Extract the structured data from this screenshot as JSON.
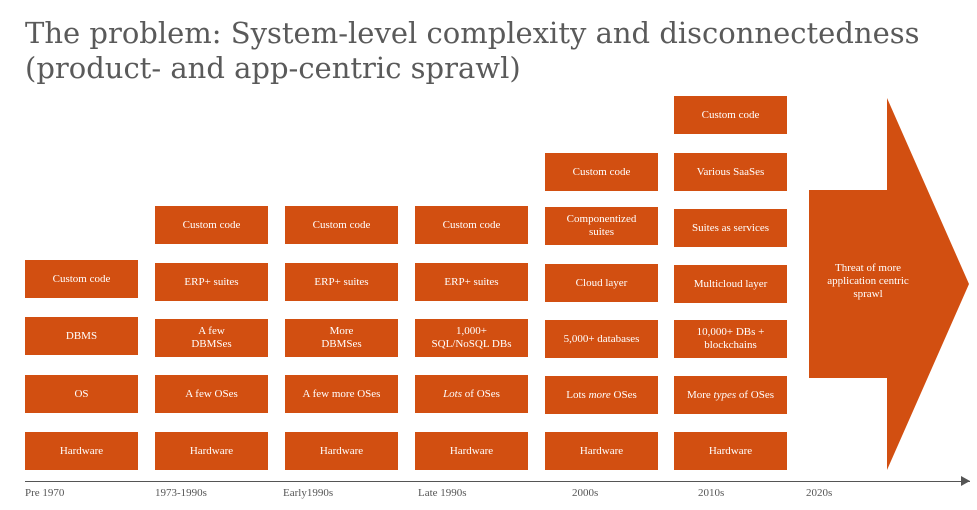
{
  "title": {
    "line1": "The problem: System-level complexity and disconnectedness",
    "line2": "(product- and app-centric sprawl)"
  },
  "columns": [
    {
      "label": "Pre 1970",
      "boxes": [
        "Custom code",
        "DBMS",
        "OS",
        "Hardware"
      ]
    },
    {
      "label": "1973-1990s",
      "boxes": [
        "Custom code",
        "ERP+ suites",
        "A few\nDBMSes",
        "A few OSes",
        "Hardware"
      ]
    },
    {
      "label": "Early1990s",
      "boxes": [
        "Custom code",
        "ERP+ suites",
        "More\nDBMSes",
        "A few more OSes",
        "Hardware"
      ]
    },
    {
      "label": "Late 1990s",
      "boxes": [
        "Custom code",
        "ERP+ suites",
        "1,000+\nSQL/NoSQL DBs",
        "Lots of OSes",
        "Hardware"
      ]
    },
    {
      "label": "2000s",
      "boxes": [
        "Custom code",
        "Componentized\nsuites",
        "Cloud layer",
        "5,000+ databases",
        "Lots more OSes",
        "Hardware"
      ]
    },
    {
      "label": "2010s",
      "boxes": [
        "Custom code",
        "Various SaaSes",
        "Suites as services",
        "Multicloud layer",
        "10,000+ DBs +\nblockchains",
        "More types of OSes",
        "Hardware"
      ]
    }
  ],
  "italic_words": {
    "lots": "Lots",
    "more": "more",
    "types": "types"
  },
  "arrow": {
    "label": "Threat of more\napplication centric\nsprawl",
    "tick_label": "2020s"
  },
  "colors": {
    "box": "#d24f11",
    "title": "#5a5a5a",
    "axis": "#555555"
  }
}
